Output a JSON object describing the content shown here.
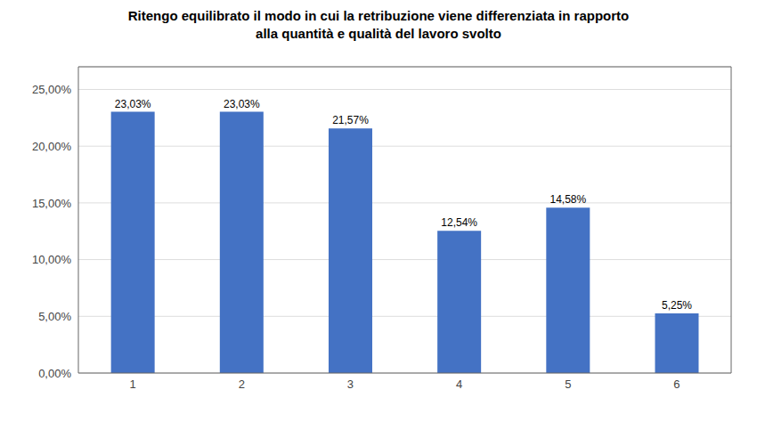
{
  "chart_data": {
    "type": "bar",
    "title": "Ritengo equilibrato il modo in cui la retribuzione viene differenziata in rapporto\nalla quantità e qualità del lavoro svolto",
    "categories": [
      "1",
      "2",
      "3",
      "4",
      "5",
      "6"
    ],
    "values": [
      23.03,
      23.03,
      21.57,
      12.54,
      14.58,
      5.25
    ],
    "value_labels": [
      "23,03%",
      "23,03%",
      "21,57%",
      "12,54%",
      "14,58%",
      "5,25%"
    ],
    "data_labels": true,
    "color": "#4472C4",
    "ylim": [
      0,
      27
    ],
    "yticks": [
      {
        "value": 0,
        "label": "0,00%"
      },
      {
        "value": 5,
        "label": "5,00%"
      },
      {
        "value": 10,
        "label": "10,00%"
      },
      {
        "value": 15,
        "label": "15,00%"
      },
      {
        "value": 20,
        "label": "20,00%"
      },
      {
        "value": 25,
        "label": "25,00%"
      }
    ],
    "grid": true
  }
}
